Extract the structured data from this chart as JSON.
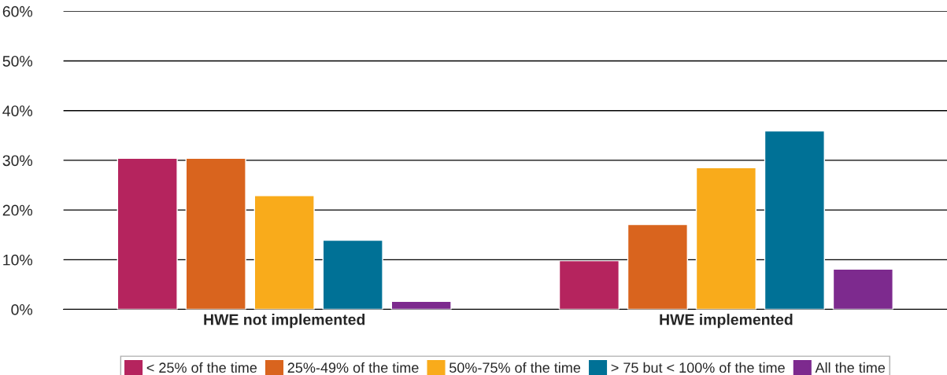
{
  "chart_data": {
    "type": "bar",
    "categories": [
      "HWE not implemented",
      "HWE implemented"
    ],
    "series": [
      {
        "name": "< 25% of the time",
        "color": "#b5245e",
        "values": [
          30.4,
          9.8
        ]
      },
      {
        "name": "25%-49% of the time",
        "color": "#d9641e",
        "values": [
          30.4,
          17.1
        ]
      },
      {
        "name": "50%-75% of the time",
        "color": "#f9ab1b",
        "values": [
          22.9,
          28.5
        ]
      },
      {
        "name": "> 75 but < 100% of the time",
        "color": "#007196",
        "values": [
          13.9,
          35.9
        ]
      },
      {
        "name": "All the time",
        "color": "#7d2a8e",
        "values": [
          1.6,
          8.1
        ]
      }
    ],
    "ylim": [
      0,
      60
    ],
    "yticks": [
      {
        "value": 0,
        "label": "0%"
      },
      {
        "value": 10,
        "label": "10%"
      },
      {
        "value": 20,
        "label": "20%"
      },
      {
        "value": 30,
        "label": "30%"
      },
      {
        "value": 40,
        "label": "40%"
      },
      {
        "value": 50,
        "label": "50%"
      },
      {
        "value": 60,
        "label": "60%"
      }
    ],
    "grid": "y",
    "legend": "bottom"
  }
}
